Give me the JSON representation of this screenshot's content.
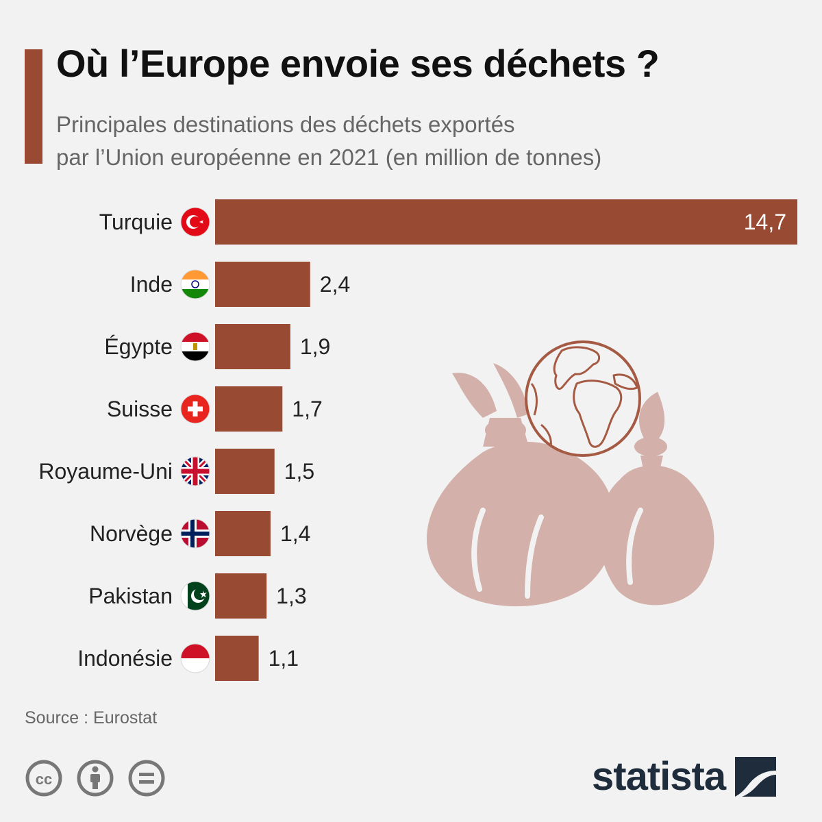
{
  "header": {
    "title": "Où l’Europe envoie ses déchets ?",
    "subtitle_line1": "Principales destinations des déchets exportés",
    "subtitle_line2": "par l’Union européenne en 2021 (en million de tonnes)"
  },
  "colors": {
    "accent": "#9a4a33",
    "bar": "#994a33",
    "illustration": "#d3b1aa",
    "globe_stroke": "#a55a43"
  },
  "chart_data": {
    "type": "bar",
    "orientation": "horizontal",
    "categories": [
      "Turquie",
      "Inde",
      "Égypte",
      "Suisse",
      "Royaume-Uni",
      "Norvège",
      "Pakistan",
      "Indonésie"
    ],
    "values": [
      14.7,
      2.4,
      1.9,
      1.7,
      1.5,
      1.4,
      1.3,
      1.1
    ],
    "value_labels": [
      "14,7",
      "2,4",
      "1,9",
      "1,7",
      "1,5",
      "1,4",
      "1,3",
      "1,1"
    ],
    "flag_icons": [
      "turkey-flag-icon",
      "india-flag-icon",
      "egypt-flag-icon",
      "switzerland-flag-icon",
      "uk-flag-icon",
      "norway-flag-icon",
      "pakistan-flag-icon",
      "indonesia-flag-icon"
    ],
    "title": "Où l’Europe envoie ses déchets ?",
    "xlabel": "",
    "ylabel": "",
    "xlim": [
      0,
      14.7
    ],
    "grid": false,
    "legend": "none"
  },
  "illustration": {
    "icon": "waste-bags-globe-icon"
  },
  "footer": {
    "source": "Source : Eurostat",
    "license_icons": [
      "cc-icon",
      "attribution-icon",
      "no-derivatives-icon"
    ],
    "brand": "statista",
    "brand_icon": "statista-logo-icon"
  }
}
